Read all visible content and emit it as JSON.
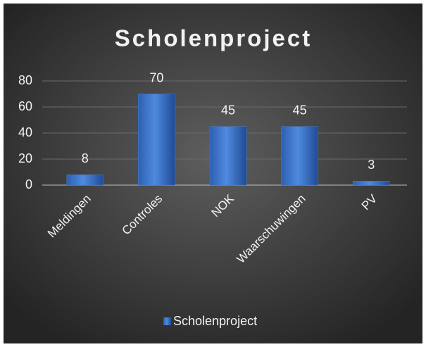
{
  "chart_data": {
    "type": "bar",
    "title": "Scholenproject",
    "categories": [
      "Meldingen",
      "Controles",
      "NOK",
      "Waarschuwingen",
      "PV"
    ],
    "series": [
      {
        "name": "Scholenproject",
        "color": "#4a7fd4",
        "values": [
          8,
          70,
          45,
          45,
          3
        ]
      }
    ],
    "ylim": [
      0,
      80
    ],
    "yticks": [
      0,
      20,
      40,
      60,
      80
    ],
    "grid": true,
    "legend": "bottom"
  }
}
